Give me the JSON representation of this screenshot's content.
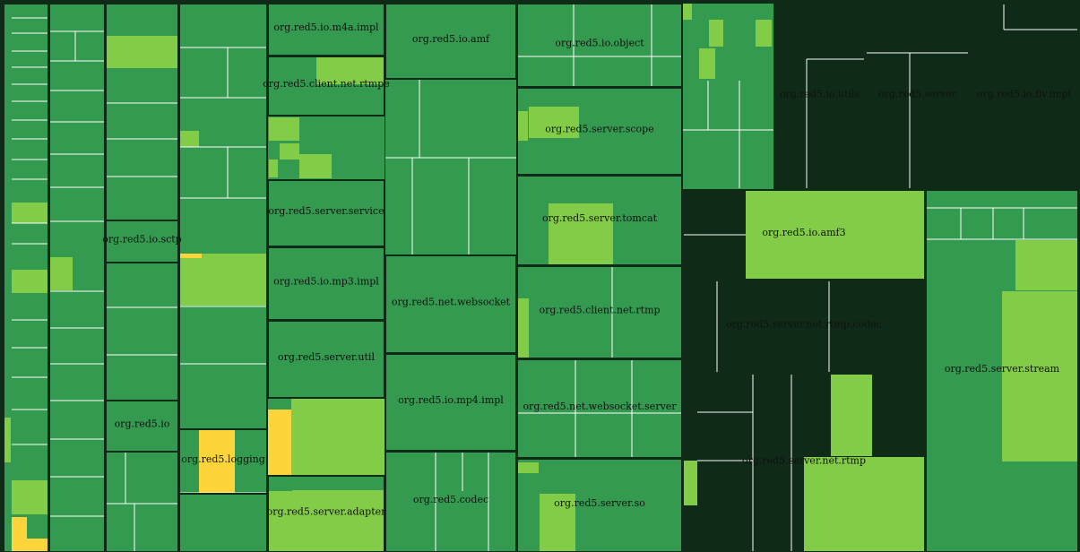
{
  "colors": {
    "dark": "#339a4f",
    "light": "#82cc47",
    "yellow": "#fdd43a",
    "border": "#0f2a16",
    "line": "#ffffff"
  },
  "chart_data": {
    "type": "treemap",
    "title": "",
    "packages": [
      {
        "name": "org.red5.io.m4a.impl"
      },
      {
        "name": "org.red5.io.amf"
      },
      {
        "name": "org.red5.io.object"
      },
      {
        "name": "org.red5.io.utils"
      },
      {
        "name": "org.red5.server"
      },
      {
        "name": "org.red5.io.flv.impl"
      },
      {
        "name": "org.red5.client.net.rtmpe"
      },
      {
        "name": "org.red5.server.scope"
      },
      {
        "name": "org.red5.server.service"
      },
      {
        "name": "org.red5.server.tomcat"
      },
      {
        "name": "org.red5.io.amf3"
      },
      {
        "name": "org.red5.io.sctp"
      },
      {
        "name": "org.red5.io.mp3.impl"
      },
      {
        "name": "org.red5.net.websocket"
      },
      {
        "name": "org.red5.client.net.rtmp"
      },
      {
        "name": "org.red5.server.net.rtmp.codec"
      },
      {
        "name": "org.red5.server.util"
      },
      {
        "name": "org.red5.server.stream"
      },
      {
        "name": "org.red5.io"
      },
      {
        "name": "org.red5.io.mp4.impl"
      },
      {
        "name": "org.red5.net.websocket.server"
      },
      {
        "name": "org.red5.logging"
      },
      {
        "name": "org.red5.server.net.rtmp"
      },
      {
        "name": "org.red5.codec"
      },
      {
        "name": "org.red5.server.so"
      },
      {
        "name": "org.red5.server.adapter"
      }
    ]
  }
}
